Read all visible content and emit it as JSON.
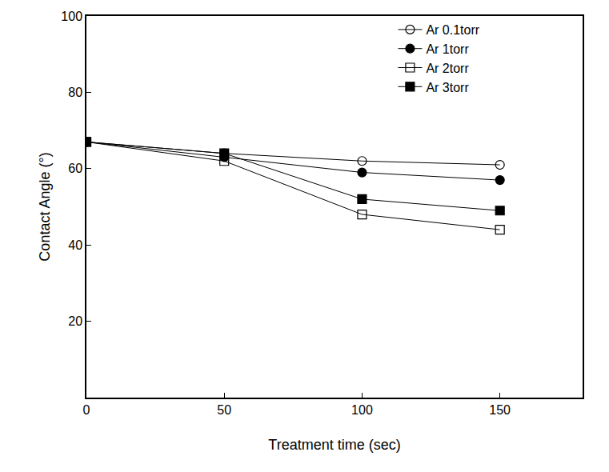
{
  "chart_data": {
    "type": "line",
    "x_label": "Treatment time (sec)",
    "y_label": "Contact Angle (°)",
    "x": [
      0,
      50,
      100,
      150
    ],
    "series": [
      {
        "name": "Ar 0.1torr",
        "color": "#000000",
        "marker": "circle-open",
        "values": [
          67,
          64,
          62,
          61
        ]
      },
      {
        "name": "Ar 1torr",
        "color": "#000000",
        "marker": "circle",
        "values": [
          67,
          63,
          59,
          57
        ]
      },
      {
        "name": "Ar 2torr",
        "color": "#000000",
        "marker": "square-open",
        "values": [
          67,
          62,
          48,
          44
        ]
      },
      {
        "name": "Ar 3torr",
        "color": "#000000",
        "marker": "square",
        "values": [
          67,
          64,
          52,
          49
        ]
      }
    ],
    "xlim": [
      0,
      180
    ],
    "xticks": [
      0,
      50,
      100,
      150
    ],
    "ylim": [
      0,
      100
    ],
    "yticks": [
      20,
      40,
      60,
      80,
      100
    ],
    "grid": false,
    "legend": "upper right"
  }
}
